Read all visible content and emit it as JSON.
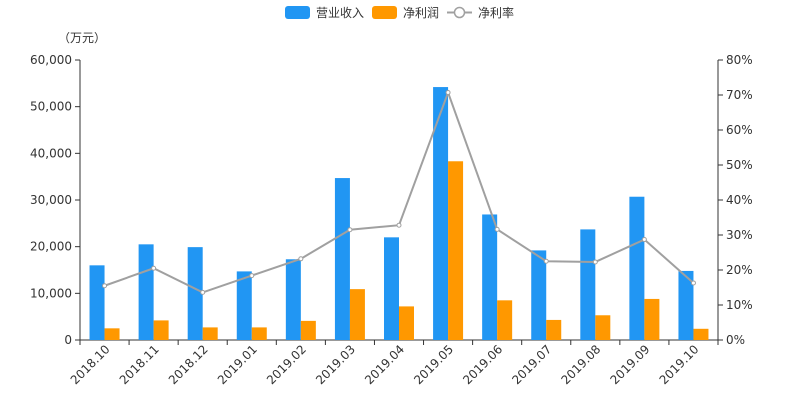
{
  "chart_data": {
    "type": "bar",
    "unit_label": "（万元）",
    "categories": [
      "2018.10",
      "2018.11",
      "2018.12",
      "2019.01",
      "2019.02",
      "2019.03",
      "2019.04",
      "2019.05",
      "2019.06",
      "2019.07",
      "2019.08",
      "2019.09",
      "2019.10"
    ],
    "series": [
      {
        "name": "营业收入",
        "type": "bar",
        "axis": "left",
        "color": "#2196F3",
        "values": [
          16000,
          20500,
          19900,
          14700,
          17300,
          34700,
          22000,
          54200,
          26900,
          19200,
          23700,
          30700,
          14800
        ]
      },
      {
        "name": "净利润",
        "type": "bar",
        "axis": "left",
        "color": "#FF9800",
        "values": [
          2500,
          4200,
          2700,
          2700,
          4100,
          10900,
          7200,
          38300,
          8500,
          4300,
          5300,
          8800,
          2400
        ]
      },
      {
        "name": "净利率",
        "type": "line",
        "axis": "right",
        "color": "#A0A0A0",
        "marker": "hollow-circle",
        "values": [
          15.5,
          20.5,
          13.6,
          18.4,
          23.2,
          31.5,
          32.8,
          70.7,
          31.6,
          22.5,
          22.3,
          28.7,
          16.3
        ]
      }
    ],
    "y_left": {
      "min": 0,
      "max": 60000,
      "ticks": [
        "0",
        "10,000",
        "20,000",
        "30,000",
        "40,000",
        "50,000",
        "60,000"
      ],
      "tick_values": [
        0,
        10000,
        20000,
        30000,
        40000,
        50000,
        60000
      ]
    },
    "y_right": {
      "min": 0,
      "max": 80,
      "ticks": [
        "0%",
        "10%",
        "20%",
        "30%",
        "40%",
        "50%",
        "60%",
        "70%",
        "80%"
      ],
      "tick_values": [
        0,
        10,
        20,
        30,
        40,
        50,
        60,
        70,
        80
      ]
    },
    "legend_position": "top-center",
    "grid": false
  }
}
